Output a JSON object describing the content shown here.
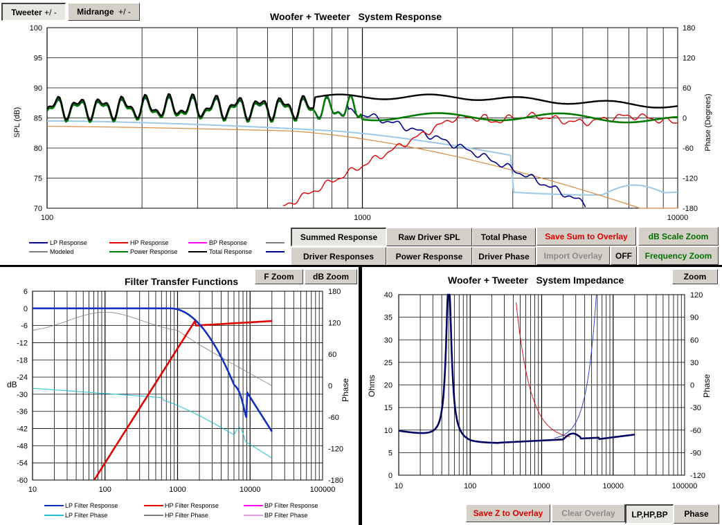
{
  "top": {
    "tabs": [
      {
        "label": "Tweeter",
        "suffix": "+/ -"
      },
      {
        "label": "Midrange",
        "suffix": "+/ -"
      }
    ],
    "title_left": "Woofer + Tweeter",
    "title_right": "System Response",
    "ylabel_left": "SPL (dB)",
    "ylabel_right": "Phase (Degrees)",
    "y_ticks": [
      "100",
      "95",
      "90",
      "85",
      "80",
      "75",
      "70"
    ],
    "phase_ticks": [
      "180",
      "120",
      "60",
      "0",
      "-60",
      "-120",
      "-180"
    ],
    "x_ticks": [
      "100",
      "1000",
      "10000"
    ],
    "legend": [
      {
        "label": "LP Response",
        "color": "#00008b"
      },
      {
        "label": "HP Response",
        "color": "#e00000"
      },
      {
        "label": "BP Response",
        "color": "#ff00ff"
      },
      {
        "label": "",
        "color": "#808080"
      },
      {
        "label": "Modeled",
        "color": "#808080"
      },
      {
        "label": "Power Response",
        "color": "#007a00"
      },
      {
        "label": "Total Response",
        "color": "#000000"
      },
      {
        "label": "",
        "color": "#00008b"
      }
    ],
    "buttons": {
      "summed": "Summed Response",
      "raw": "Raw Driver SPL",
      "total_phase": "Total Phase",
      "save_sum": "Save Sum to Overlay",
      "db_zoom": "dB Scale Zoom",
      "driver_resp": "Driver Responses",
      "power_resp": "Power Response",
      "driver_phase": "Driver Phase",
      "import_overlay": "Import Overlay",
      "off": "OFF",
      "freq_zoom": "Frequency Zoom"
    }
  },
  "filter": {
    "title": "Filter Transfer Functions",
    "f_zoom": "F Zoom",
    "db_zoom": "dB Zoom",
    "ylabel_left": "dB",
    "ylabel_right": "Phase",
    "y_ticks": [
      "6",
      "0",
      "-6",
      "-12",
      "-18",
      "-24",
      "-30",
      "-36",
      "-42",
      "-48",
      "-54",
      "-60"
    ],
    "phase_ticks": [
      "180",
      "120",
      "60",
      "0",
      "-60",
      "-120",
      "-180"
    ],
    "x_ticks": [
      "10",
      "100",
      "1000",
      "10000",
      "100000"
    ],
    "legend": [
      {
        "label": "LP Filter Response",
        "color": "#1030c0"
      },
      {
        "label": "HP Filter Response",
        "color": "#e00000"
      },
      {
        "label": "BP Filter Response",
        "color": "#ff00ff"
      },
      {
        "label": "LP Filter Phase",
        "color": "#20c0d0"
      },
      {
        "label": "HP Filter Phase",
        "color": "#808080"
      },
      {
        "label": "BP Filter Phase",
        "color": "#e0a0e0"
      }
    ]
  },
  "impedance": {
    "title_left": "Woofer + Tweeter",
    "title_right": "System Impedance",
    "zoom": "Zoom",
    "ylabel_left": "Ohms",
    "ylabel_right": "Phase",
    "y_ticks": [
      "40",
      "35",
      "30",
      "25",
      "20",
      "15",
      "10",
      "5",
      "0"
    ],
    "phase_ticks": [
      "120",
      "90",
      "60",
      "30",
      "0",
      "-30",
      "-60",
      "-90",
      "-120"
    ],
    "x_ticks": [
      "10",
      "100",
      "1000",
      "10000",
      "100000"
    ],
    "buttons": {
      "save_z": "Save Z to Overlay",
      "clear": "Clear Overlay",
      "lp": "LP,HP,BP",
      "phase": "Phase"
    }
  },
  "colors": {
    "lp": "#00008b",
    "hp": "#e00000",
    "power": "#007a00",
    "total": "#000000",
    "modeled_light": "#9cc8e8",
    "modeled_orange": "#d88a40",
    "lp_filter": "#1030c0",
    "lp_phase": "#20c0d0"
  }
}
